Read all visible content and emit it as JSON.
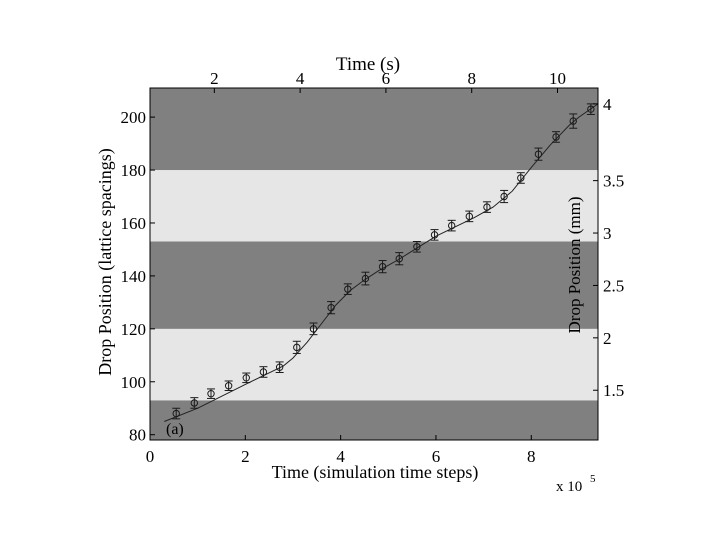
{
  "chart_data": {
    "type": "scatter",
    "title": "Time (s)",
    "xlabel": "Time (simulation time steps)",
    "xlabel_multiplier": "x 10",
    "xlabel_multiplier_exp": "5",
    "ylabel": "Drop Position (lattice spacings)",
    "ylabel_right": "Drop Position (mm)",
    "xlim": [
      0,
      9.4
    ],
    "ylim": [
      78,
      211
    ],
    "x_ticks": [
      "0",
      "2",
      "4",
      "6",
      "8"
    ],
    "x_tick_values": [
      0,
      2,
      4,
      6,
      8
    ],
    "y_ticks": [
      "80",
      "100",
      "120",
      "140",
      "160",
      "180",
      "200"
    ],
    "y_tick_values": [
      80,
      100,
      120,
      140,
      160,
      180,
      200
    ],
    "top_ticks": [
      "2",
      "4",
      "6",
      "8",
      "10"
    ],
    "top_tick_positions": [
      1.35,
      3.15,
      4.95,
      6.75,
      8.55
    ],
    "right_ticks": [
      "1.5",
      "2",
      "2.5",
      "3",
      "3.5",
      "4"
    ],
    "right_tick_positions": [
      96.8,
      116.6,
      136.4,
      156.2,
      176.0,
      205.0
    ],
    "bands": [
      {
        "y0": 78,
        "y1": 93,
        "color": "#808080"
      },
      {
        "y0": 93,
        "y1": 120,
        "color": "#e6e6e6"
      },
      {
        "y0": 120,
        "y1": 153,
        "color": "#808080"
      },
      {
        "y0": 153,
        "y1": 180,
        "color": "#e6e6e6"
      },
      {
        "y0": 180,
        "y1": 211,
        "color": "#808080"
      }
    ],
    "annotation": "(a)",
    "points": [
      {
        "x": 0.55,
        "y": 88.0,
        "err": 2.0
      },
      {
        "x": 0.93,
        "y": 92.0,
        "err": 2.0
      },
      {
        "x": 1.28,
        "y": 95.5,
        "err": 1.8
      },
      {
        "x": 1.65,
        "y": 98.5,
        "err": 1.8
      },
      {
        "x": 2.02,
        "y": 101.5,
        "err": 1.8
      },
      {
        "x": 2.38,
        "y": 103.7,
        "err": 2.0
      },
      {
        "x": 2.72,
        "y": 105.5,
        "err": 2.0
      },
      {
        "x": 3.08,
        "y": 113.0,
        "err": 2.3
      },
      {
        "x": 3.43,
        "y": 120.0,
        "err": 2.2
      },
      {
        "x": 3.8,
        "y": 128.0,
        "err": 2.3
      },
      {
        "x": 4.15,
        "y": 135.0,
        "err": 2.0
      },
      {
        "x": 4.52,
        "y": 139.0,
        "err": 2.4
      },
      {
        "x": 4.88,
        "y": 143.5,
        "err": 2.3
      },
      {
        "x": 5.23,
        "y": 146.5,
        "err": 2.3
      },
      {
        "x": 5.6,
        "y": 151.0,
        "err": 2.0
      },
      {
        "x": 5.97,
        "y": 155.5,
        "err": 2.0
      },
      {
        "x": 6.33,
        "y": 159.0,
        "err": 2.0
      },
      {
        "x": 6.7,
        "y": 162.5,
        "err": 2.0
      },
      {
        "x": 7.07,
        "y": 166.0,
        "err": 2.0
      },
      {
        "x": 7.43,
        "y": 170.0,
        "err": 2.3
      },
      {
        "x": 7.78,
        "y": 177.0,
        "err": 2.0
      },
      {
        "x": 8.15,
        "y": 186.0,
        "err": 2.3
      },
      {
        "x": 8.52,
        "y": 192.5,
        "err": 2.0
      },
      {
        "x": 8.88,
        "y": 198.5,
        "err": 2.7
      },
      {
        "x": 9.25,
        "y": 203.0,
        "err": 2.0
      }
    ],
    "fit_line": {
      "x": [
        0.3,
        1.0,
        1.5,
        2.0,
        2.4,
        2.8,
        3.0,
        3.3,
        3.6,
        3.9,
        4.2,
        4.5,
        4.8,
        5.2,
        5.6,
        6.0,
        6.4,
        6.8,
        7.2,
        7.6,
        8.0,
        8.4,
        8.8,
        9.0,
        9.4
      ],
      "y": [
        85,
        90,
        94.5,
        99,
        102.5,
        106,
        109,
        115,
        122,
        129,
        134.5,
        138.5,
        142,
        146,
        150.5,
        155,
        158.5,
        162,
        166,
        172,
        181,
        189.5,
        197,
        200,
        205
      ]
    },
    "grid": false,
    "legend": "none"
  }
}
